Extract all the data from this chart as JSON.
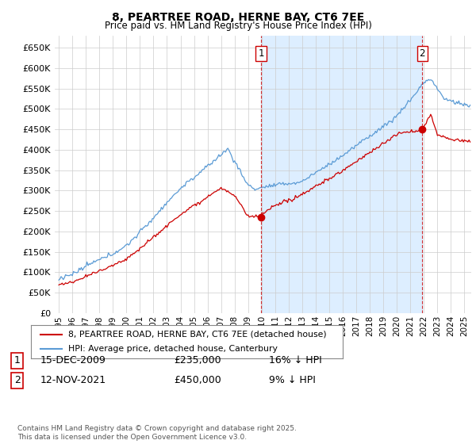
{
  "title": "8, PEARTREE ROAD, HERNE BAY, CT6 7EE",
  "subtitle": "Price paid vs. HM Land Registry's House Price Index (HPI)",
  "legend_line1": "8, PEARTREE ROAD, HERNE BAY, CT6 7EE (detached house)",
  "legend_line2": "HPI: Average price, detached house, Canterbury",
  "annotation1_label": "1",
  "annotation1_date": "15-DEC-2009",
  "annotation1_price": "£235,000",
  "annotation1_hpi": "16% ↓ HPI",
  "annotation2_label": "2",
  "annotation2_date": "12-NOV-2021",
  "annotation2_price": "£450,000",
  "annotation2_hpi": "9% ↓ HPI",
  "footer": "Contains HM Land Registry data © Crown copyright and database right 2025.\nThis data is licensed under the Open Government Licence v3.0.",
  "ylim": [
    0,
    680000
  ],
  "yticks": [
    0,
    50000,
    100000,
    150000,
    200000,
    250000,
    300000,
    350000,
    400000,
    450000,
    500000,
    550000,
    600000,
    650000
  ],
  "xlim_start": 1994.7,
  "xlim_end": 2025.5,
  "sale1_x": 2009.958,
  "sale1_y": 235000,
  "sale2_x": 2021.875,
  "sale2_y": 450000,
  "hpi_color": "#5b9bd5",
  "price_color": "#cc0000",
  "shade_color": "#ddeeff",
  "grid_color": "#cccccc",
  "background_color": "#ffffff"
}
